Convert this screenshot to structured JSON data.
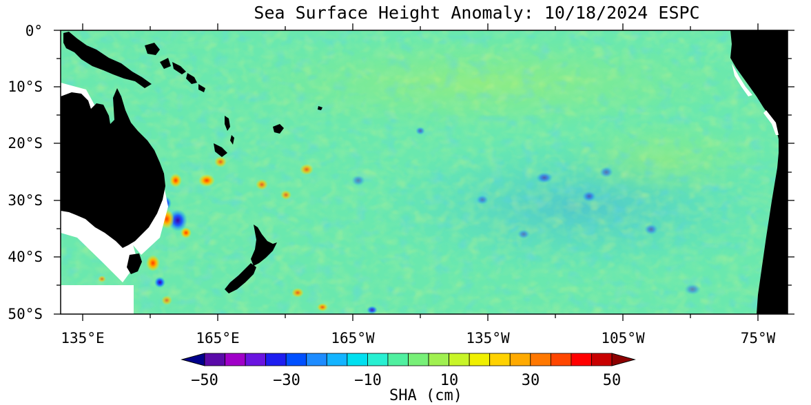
{
  "map": {
    "title": "Sea Surface Height Anomaly: 10/18/2024 ESPC",
    "lat_labels": [
      "0°",
      "10°S",
      "20°S",
      "30°S",
      "40°S",
      "50°S"
    ],
    "lon_labels": [
      "135°E",
      "165°E",
      "165°W",
      "135°W",
      "105°W",
      "75°W"
    ],
    "lat_range": [
      0,
      -50
    ],
    "lon_range": [
      130,
      290
    ],
    "land_color": "#000000",
    "ocean_background": "#7ee8a0"
  },
  "colorbar": {
    "title": "SHA (cm)",
    "tick_labels": [
      "−50",
      "−30",
      "−10",
      "10",
      "30",
      "50"
    ],
    "range": [
      -50,
      50
    ],
    "colors": [
      "#00008b",
      "#5a0aa8",
      "#a000c8",
      "#6a14e0",
      "#1e1ef0",
      "#0050ff",
      "#1e8cff",
      "#14b4ff",
      "#00e0f0",
      "#28f0d2",
      "#50f0a0",
      "#78f078",
      "#a0f050",
      "#c8f528",
      "#f0f000",
      "#ffd200",
      "#ffaa00",
      "#ff7800",
      "#ff4600",
      "#ff0000",
      "#c80000",
      "#8c0000"
    ]
  }
}
